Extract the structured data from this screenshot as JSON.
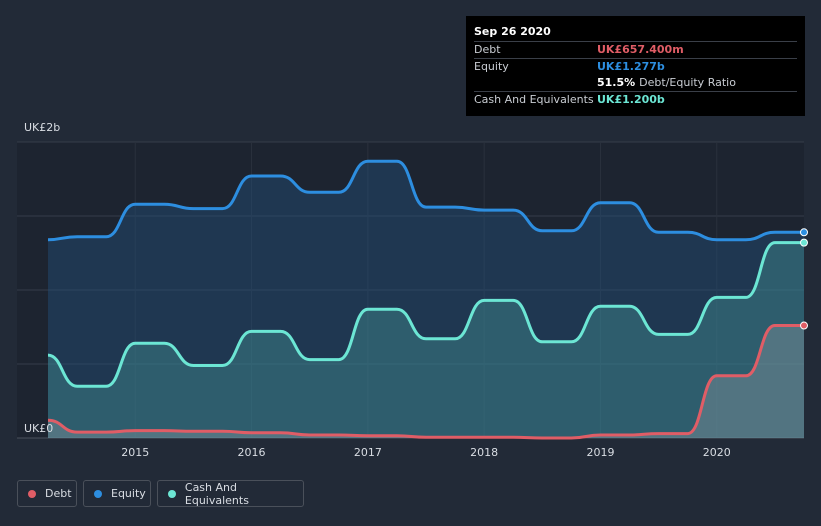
{
  "tooltip": {
    "date": "Sep 26 2020",
    "debt_label": "Debt",
    "debt_value": "UK£657.400m",
    "equity_label": "Equity",
    "equity_value": "UK£1.277b",
    "ratio_value": "51.5%",
    "ratio_label": "Debt/Equity Ratio",
    "cash_label": "Cash And Equivalents",
    "cash_value": "UK£1.200b"
  },
  "legend": {
    "debt": "Debt",
    "equity": "Equity",
    "cash": "Cash And Equivalents"
  },
  "colors": {
    "background": "#222a37",
    "debt": "#e05d66",
    "equity": "#2d8ee0",
    "cash": "#6ce6d4"
  },
  "chart_data": {
    "type": "area",
    "ylim": [
      0,
      2.0
    ],
    "y_tick_labels": [
      "UK£0",
      "UK£2b"
    ],
    "x_tick_labels": [
      "2015",
      "2016",
      "2017",
      "2018",
      "2019",
      "2020"
    ],
    "xlim": [
      2014.25,
      2020.75
    ],
    "grid": true,
    "legend_position": "bottom-left",
    "series": [
      {
        "name": "Equity",
        "points": [
          [
            2014.25,
            1.34
          ],
          [
            2014.5,
            1.36
          ],
          [
            2014.75,
            1.36
          ],
          [
            2015.0,
            1.58
          ],
          [
            2015.25,
            1.58
          ],
          [
            2015.5,
            1.55
          ],
          [
            2015.75,
            1.55
          ],
          [
            2016.0,
            1.77
          ],
          [
            2016.25,
            1.77
          ],
          [
            2016.5,
            1.66
          ],
          [
            2016.75,
            1.66
          ],
          [
            2017.0,
            1.87
          ],
          [
            2017.25,
            1.87
          ],
          [
            2017.5,
            1.56
          ],
          [
            2017.75,
            1.56
          ],
          [
            2018.0,
            1.54
          ],
          [
            2018.25,
            1.54
          ],
          [
            2018.5,
            1.4
          ],
          [
            2018.75,
            1.4
          ],
          [
            2019.0,
            1.59
          ],
          [
            2019.25,
            1.59
          ],
          [
            2019.5,
            1.39
          ],
          [
            2019.75,
            1.39
          ],
          [
            2020.0,
            1.34
          ],
          [
            2020.25,
            1.34
          ],
          [
            2020.5,
            1.39
          ],
          [
            2020.75,
            1.39
          ]
        ]
      },
      {
        "name": "Cash And Equivalents",
        "points": [
          [
            2014.25,
            0.56
          ],
          [
            2014.5,
            0.35
          ],
          [
            2014.75,
            0.35
          ],
          [
            2015.0,
            0.64
          ],
          [
            2015.25,
            0.64
          ],
          [
            2015.5,
            0.49
          ],
          [
            2015.75,
            0.49
          ],
          [
            2016.0,
            0.72
          ],
          [
            2016.25,
            0.72
          ],
          [
            2016.5,
            0.53
          ],
          [
            2016.75,
            0.53
          ],
          [
            2017.0,
            0.87
          ],
          [
            2017.25,
            0.87
          ],
          [
            2017.5,
            0.67
          ],
          [
            2017.75,
            0.67
          ],
          [
            2018.0,
            0.93
          ],
          [
            2018.25,
            0.93
          ],
          [
            2018.5,
            0.65
          ],
          [
            2018.75,
            0.65
          ],
          [
            2019.0,
            0.89
          ],
          [
            2019.25,
            0.89
          ],
          [
            2019.5,
            0.7
          ],
          [
            2019.75,
            0.7
          ],
          [
            2020.0,
            0.95
          ],
          [
            2020.25,
            0.95
          ],
          [
            2020.5,
            1.32
          ],
          [
            2020.75,
            1.32
          ]
        ]
      },
      {
        "name": "Debt",
        "points": [
          [
            2014.25,
            0.12
          ],
          [
            2014.5,
            0.04
          ],
          [
            2014.75,
            0.04
          ],
          [
            2015.0,
            0.05
          ],
          [
            2015.25,
            0.05
          ],
          [
            2015.5,
            0.045
          ],
          [
            2015.75,
            0.045
          ],
          [
            2016.0,
            0.035
          ],
          [
            2016.25,
            0.035
          ],
          [
            2016.5,
            0.02
          ],
          [
            2016.75,
            0.02
          ],
          [
            2017.0,
            0.015
          ],
          [
            2017.25,
            0.015
          ],
          [
            2017.5,
            0.005
          ],
          [
            2017.75,
            0.005
          ],
          [
            2018.0,
            0.005
          ],
          [
            2018.25,
            0.005
          ],
          [
            2018.5,
            0.0
          ],
          [
            2018.75,
            0.0
          ],
          [
            2019.0,
            0.02
          ],
          [
            2019.25,
            0.02
          ],
          [
            2019.5,
            0.03
          ],
          [
            2019.75,
            0.03
          ],
          [
            2020.0,
            0.42
          ],
          [
            2020.25,
            0.42
          ],
          [
            2020.5,
            0.76
          ],
          [
            2020.75,
            0.76
          ]
        ]
      }
    ]
  }
}
